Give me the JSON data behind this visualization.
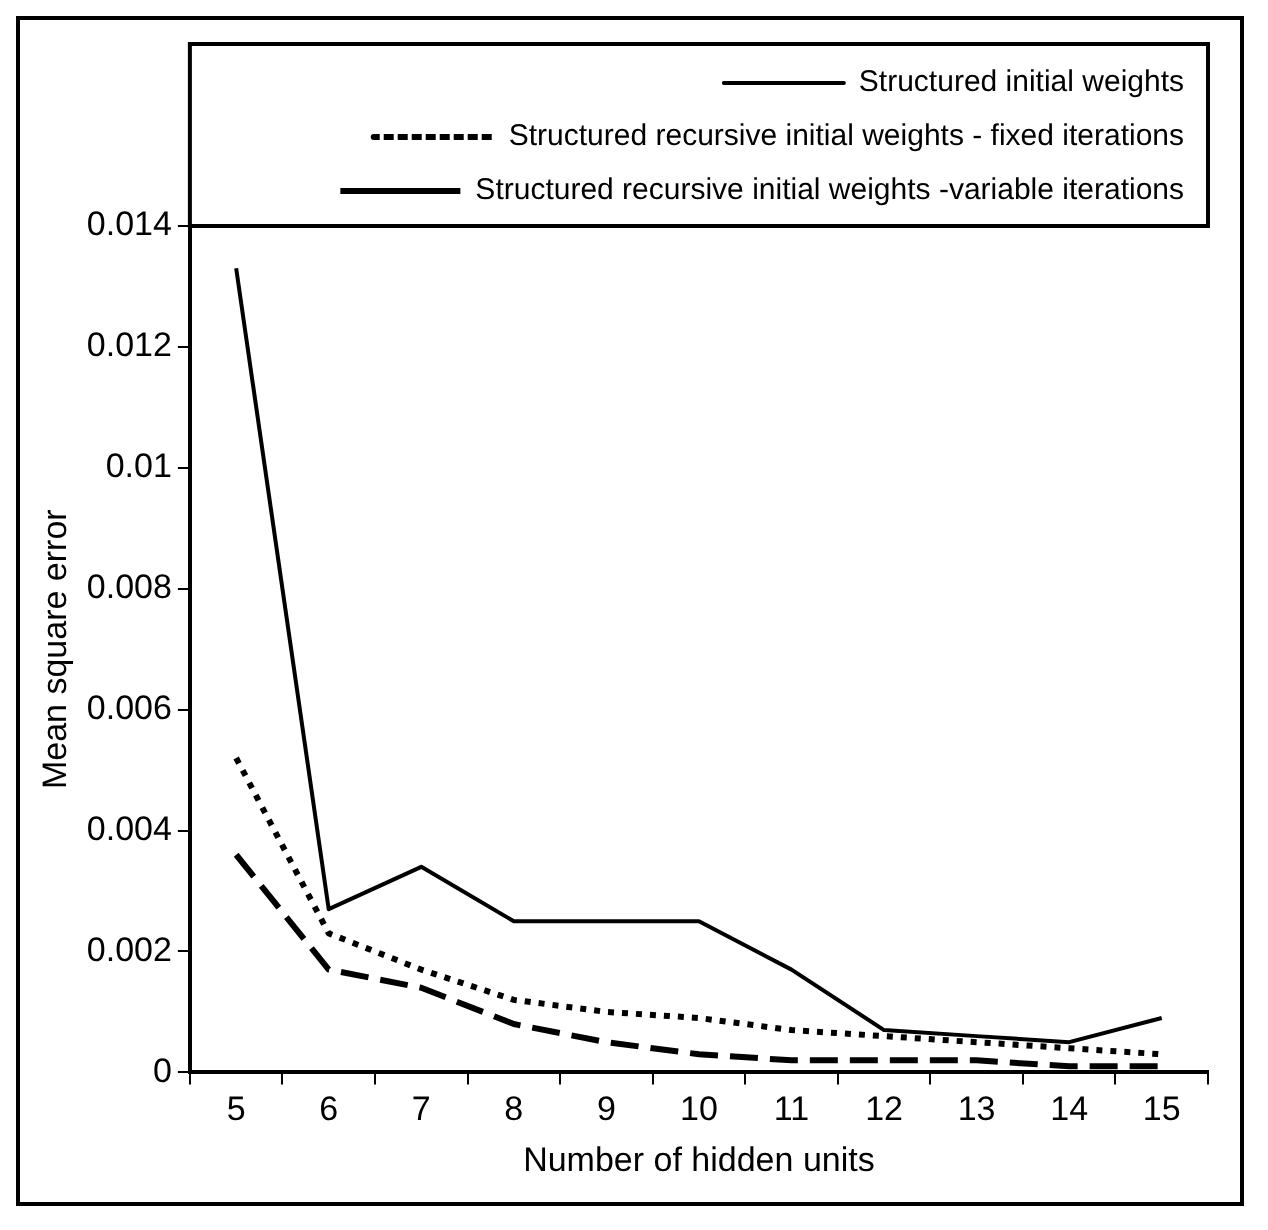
{
  "chart_data": {
    "type": "line",
    "xlabel": "Number of hidden units",
    "ylabel": "Mean square error",
    "categories": [
      "5",
      "6",
      "7",
      "8",
      "9",
      "10",
      "11",
      "12",
      "13",
      "14",
      "15"
    ],
    "series": [
      {
        "name": "Structured initial weights",
        "color": "#000000",
        "line_style": "solid",
        "values": [
          0.0133,
          0.0027,
          0.0034,
          0.0025,
          0.0025,
          0.0025,
          0.0017,
          0.0007,
          0.0006,
          0.0005,
          0.0009
        ]
      },
      {
        "name": "Structured recursive initial weights - fixed iterations",
        "color": "#000000",
        "line_style": "dotted",
        "values": [
          0.0052,
          0.0023,
          0.0017,
          0.0012,
          0.001,
          0.0009,
          0.0007,
          0.0006,
          0.0005,
          0.0004,
          0.0003
        ]
      },
      {
        "name": "Structured recursive initial weights -variable iterations",
        "color": "#000000",
        "line_style": "dashed",
        "values": [
          0.0036,
          0.0017,
          0.0014,
          0.0008,
          0.0005,
          0.0003,
          0.0002,
          0.0002,
          0.0002,
          0.0001,
          0.0001
        ]
      }
    ],
    "ylim": [
      0,
      0.014
    ],
    "yticks": [
      0,
      0.002,
      0.004,
      0.006,
      0.008,
      0.01,
      0.012,
      0.014
    ],
    "grid": false,
    "legend": "top right",
    "marker": "none"
  }
}
